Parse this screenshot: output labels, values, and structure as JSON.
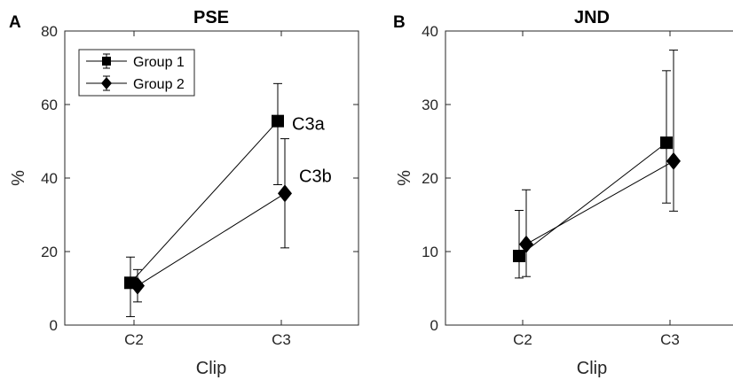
{
  "chart_data": [
    {
      "type": "line",
      "panel_label": "A",
      "title": "PSE",
      "xlabel": "Clip",
      "ylabel": "%",
      "categories": [
        "C2",
        "C3"
      ],
      "ylim": [
        0,
        80
      ],
      "yticks": [
        0,
        20,
        40,
        60,
        80
      ],
      "grid": false,
      "legend": {
        "placement": "top-left",
        "entries": [
          "Group 1",
          "Group 2"
        ]
      },
      "series": [
        {
          "name": "Group 1",
          "marker": "square",
          "values": [
            11.5,
            55.5
          ],
          "err_low": [
            2.3,
            38.2
          ],
          "err_high": [
            18.5,
            65.7
          ]
        },
        {
          "name": "Group 2",
          "marker": "diamond",
          "values": [
            10.7,
            35.8
          ],
          "err_low": [
            6.3,
            21.0
          ],
          "err_high": [
            15.1,
            50.7
          ]
        }
      ],
      "annotations": [
        {
          "text": "C3a",
          "series": 0,
          "category": 1
        },
        {
          "text": "C3b",
          "series": 1,
          "category": 1
        }
      ]
    },
    {
      "type": "line",
      "panel_label": "B",
      "title": "JND",
      "xlabel": "Clip",
      "ylabel": "%",
      "categories": [
        "C2",
        "C3"
      ],
      "ylim": [
        0,
        40
      ],
      "yticks": [
        0,
        10,
        20,
        30,
        40
      ],
      "grid": false,
      "series": [
        {
          "name": "Group 1",
          "marker": "square",
          "values": [
            9.4,
            24.8
          ],
          "err_low": [
            6.4,
            16.6
          ],
          "err_high": [
            15.6,
            34.6
          ]
        },
        {
          "name": "Group 2",
          "marker": "diamond",
          "values": [
            11.0,
            22.3
          ],
          "err_low": [
            6.6,
            15.5
          ],
          "err_high": [
            18.4,
            37.4
          ]
        }
      ],
      "annotations": []
    }
  ]
}
